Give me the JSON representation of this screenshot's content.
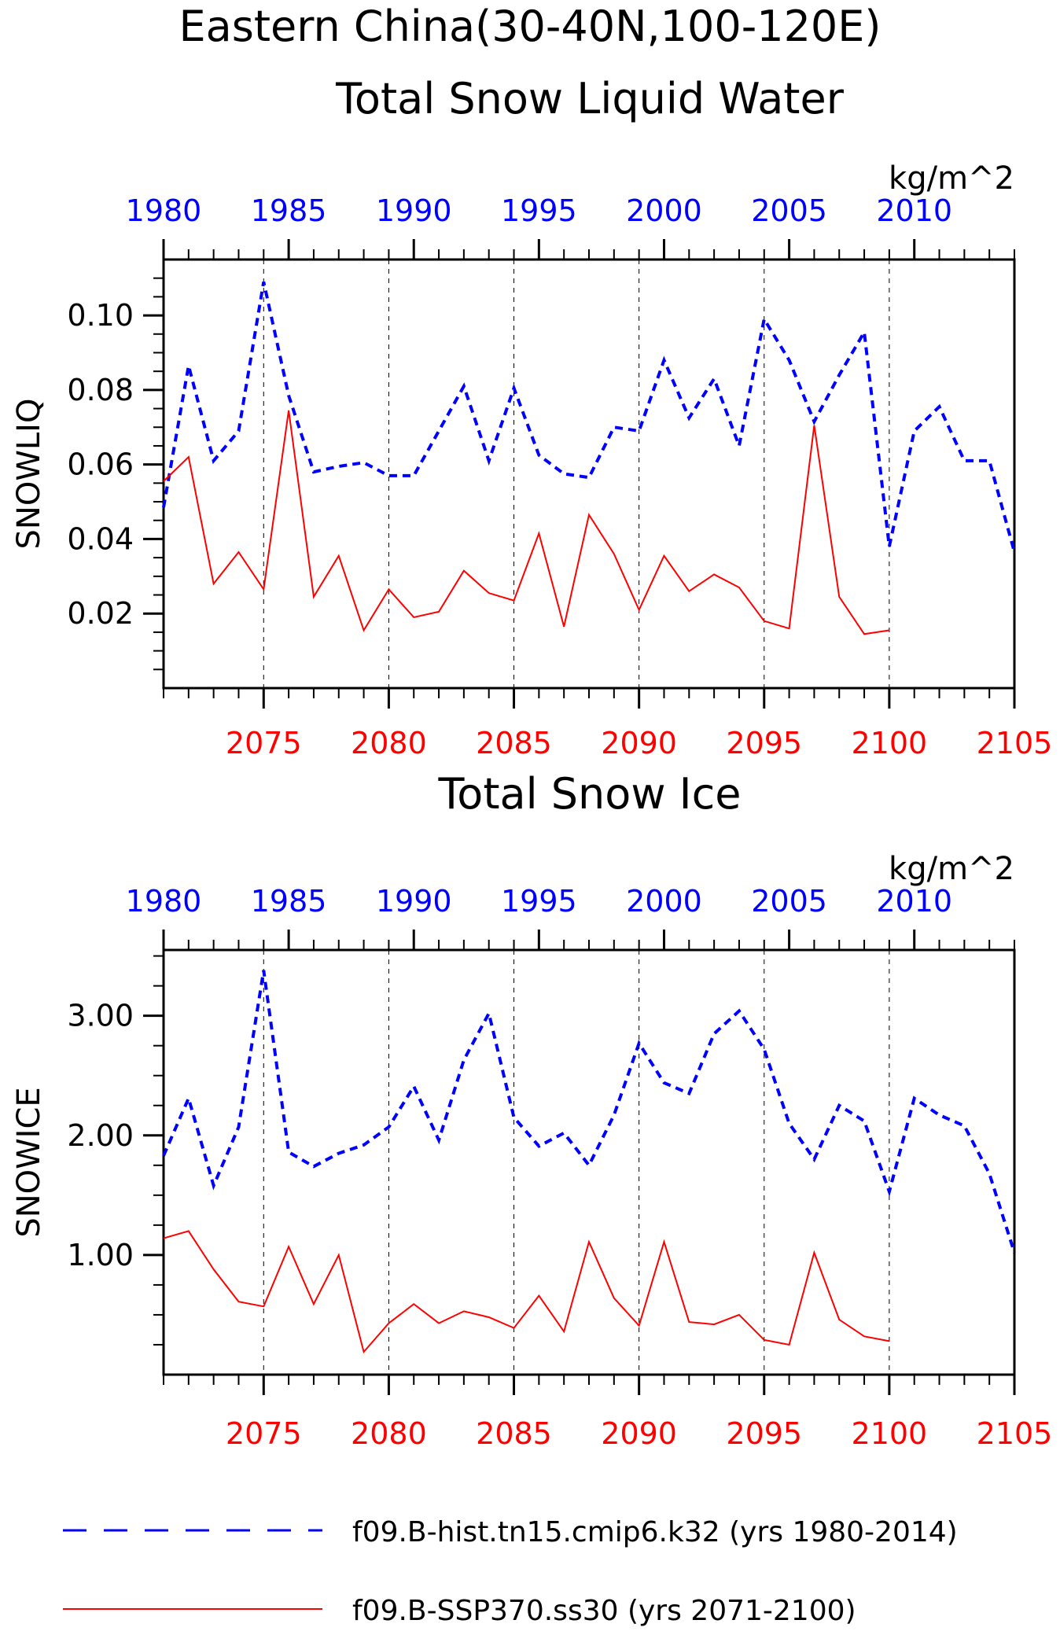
{
  "header": {
    "title_line1": "Eastern China(30-40N,100-120E)",
    "title_line2": "Total Snow Liquid Water"
  },
  "colors": {
    "hist": "#0000ff",
    "ssp": "#ff0000",
    "axis": "#000000"
  },
  "chart_data": [
    {
      "type": "line",
      "title": "Total Snow Liquid Water",
      "units": "kg/m^2",
      "ylabel": "SNOWLIQ",
      "ylim": [
        0.0,
        0.115
      ],
      "yticks": [
        0.02,
        0.04,
        0.06,
        0.08,
        0.1
      ],
      "ytick_labels": [
        "0.02",
        "0.04",
        "0.06",
        "0.08",
        "0.10"
      ],
      "top_axis": {
        "ticks": [
          1980,
          1985,
          1990,
          1995,
          2000,
          2005,
          2010
        ]
      },
      "bottom_axis": {
        "ticks": [
          2075,
          2080,
          2085,
          2090,
          2095,
          2100,
          2105
        ]
      },
      "series": [
        {
          "name": "f09.B-hist.tn15.cmip6.k32 (yrs 1980-2014)",
          "axis": "top",
          "style": "dashed",
          "x": [
            1980,
            1981,
            1982,
            1983,
            1984,
            1985,
            1986,
            1987,
            1988,
            1989,
            1990,
            1991,
            1992,
            1993,
            1994,
            1995,
            1996,
            1997,
            1998,
            1999,
            2000,
            2001,
            2002,
            2003,
            2004,
            2005,
            2006,
            2007,
            2008,
            2009,
            2010,
            2011,
            2012,
            2013,
            2014
          ],
          "values": [
            0.0485,
            0.0865,
            0.061,
            0.069,
            0.109,
            0.0785,
            0.058,
            0.0595,
            0.0605,
            0.057,
            0.057,
            0.069,
            0.081,
            0.061,
            0.0805,
            0.0625,
            0.0575,
            0.0565,
            0.07,
            0.069,
            0.088,
            0.0725,
            0.083,
            0.065,
            0.099,
            0.088,
            0.0715,
            0.084,
            0.0955,
            0.038,
            0.069,
            0.0755,
            0.061,
            0.061,
            0.0365
          ]
        },
        {
          "name": "f09.B-SSP370.ss30 (yrs 2071-2100)",
          "axis": "bottom",
          "style": "solid",
          "x": [
            2071,
            2072,
            2073,
            2074,
            2075,
            2076,
            2077,
            2078,
            2079,
            2080,
            2081,
            2082,
            2083,
            2084,
            2085,
            2086,
            2087,
            2088,
            2089,
            2090,
            2091,
            2092,
            2093,
            2094,
            2095,
            2096,
            2097,
            2098,
            2099,
            2100
          ],
          "values": [
            0.0555,
            0.062,
            0.028,
            0.0365,
            0.0265,
            0.0745,
            0.0245,
            0.0355,
            0.0155,
            0.0265,
            0.019,
            0.0205,
            0.0315,
            0.0255,
            0.0235,
            0.0415,
            0.0165,
            0.0465,
            0.036,
            0.021,
            0.0355,
            0.026,
            0.0305,
            0.027,
            0.018,
            0.016,
            0.0705,
            0.0245,
            0.0145,
            0.0155
          ]
        }
      ]
    },
    {
      "type": "line",
      "title": "Total Snow Ice",
      "units": "kg/m^2",
      "ylabel": "SNOWICE",
      "ylim": [
        0.0,
        3.55
      ],
      "yticks": [
        1.0,
        2.0,
        3.0
      ],
      "ytick_labels": [
        "1.00",
        "2.00",
        "3.00"
      ],
      "top_axis": {
        "ticks": [
          1980,
          1985,
          1990,
          1995,
          2000,
          2005,
          2010
        ]
      },
      "bottom_axis": {
        "ticks": [
          2075,
          2080,
          2085,
          2090,
          2095,
          2100,
          2105
        ]
      },
      "series": [
        {
          "name": "f09.B-hist.tn15.cmip6.k32 (yrs 1980-2014)",
          "axis": "top",
          "style": "dashed",
          "x": [
            1980,
            1981,
            1982,
            1983,
            1984,
            1985,
            1986,
            1987,
            1988,
            1989,
            1990,
            1991,
            1992,
            1993,
            1994,
            1995,
            1996,
            1997,
            1998,
            1999,
            2000,
            2001,
            2002,
            2003,
            2004,
            2005,
            2006,
            2007,
            2008,
            2009,
            2010,
            2011,
            2012,
            2013,
            2014
          ],
          "values": [
            1.83,
            2.31,
            1.58,
            2.07,
            3.38,
            1.86,
            1.74,
            1.85,
            1.92,
            2.07,
            2.41,
            1.96,
            2.63,
            3.02,
            2.15,
            1.91,
            2.02,
            1.75,
            2.17,
            2.77,
            2.44,
            2.35,
            2.85,
            3.04,
            2.72,
            2.1,
            1.8,
            2.25,
            2.12,
            1.53,
            2.31,
            2.17,
            2.08,
            1.68,
            1.02
          ]
        },
        {
          "name": "f09.B-SSP370.ss30 (yrs 2071-2100)",
          "axis": "bottom",
          "style": "solid",
          "x": [
            2071,
            2072,
            2073,
            2074,
            2075,
            2076,
            2077,
            2078,
            2079,
            2080,
            2081,
            2082,
            2083,
            2084,
            2085,
            2086,
            2087,
            2088,
            2089,
            2090,
            2091,
            2092,
            2093,
            2094,
            2095,
            2096,
            2097,
            2098,
            2099,
            2100
          ],
          "values": [
            1.14,
            1.2,
            0.88,
            0.61,
            0.57,
            1.07,
            0.59,
            1.0,
            0.19,
            0.43,
            0.59,
            0.43,
            0.53,
            0.48,
            0.39,
            0.66,
            0.36,
            1.11,
            0.64,
            0.41,
            1.11,
            0.44,
            0.42,
            0.5,
            0.29,
            0.25,
            1.02,
            0.46,
            0.32,
            0.28
          ]
        }
      ]
    }
  ],
  "legend": {
    "hist_label": "f09.B-hist.tn15.cmip6.k32 (yrs 1980-2014)",
    "ssp_label": "f09.B-SSP370.ss30 (yrs 2071-2100)"
  }
}
